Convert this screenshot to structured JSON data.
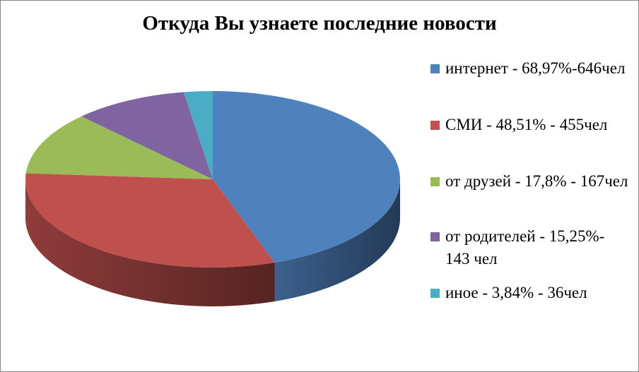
{
  "chart_data": {
    "type": "pie",
    "title": "Откуда Вы узнаете последние новости",
    "categories": [
      "интернет - 68,97%-646чел",
      "СМИ - 48,51% - 455чел",
      "от друзей - 17,8% - 167чел",
      "от родителей - 15,25%- 143 чел",
      "иное - 3,84% - 36чел"
    ],
    "values": [
      646,
      455,
      167,
      143,
      36
    ],
    "colors": [
      "#4f81bd",
      "#c0504d",
      "#9bbb59",
      "#8064a2",
      "#4bacc6"
    ],
    "legend": "right"
  }
}
